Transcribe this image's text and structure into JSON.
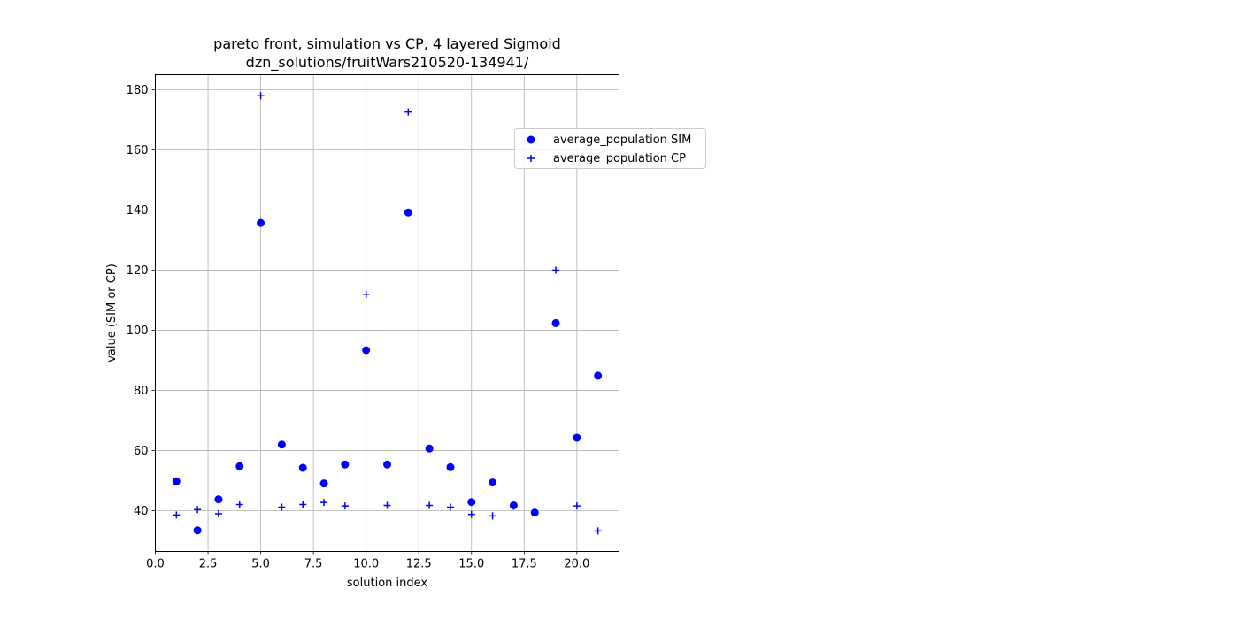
{
  "chart_data": {
    "type": "scatter",
    "title": [
      "pareto front, simulation vs CP, 4 layered Sigmoid",
      "dzn_solutions/fruitWars210520-134941/"
    ],
    "xlabel": "solution index",
    "ylabel": "value (SIM or CP)",
    "xlim": [
      0,
      22
    ],
    "ylim": [
      26.5,
      185
    ],
    "xticks": [
      0.0,
      2.5,
      5.0,
      7.5,
      10.0,
      12.5,
      15.0,
      17.5,
      20.0
    ],
    "xtick_labels": [
      "0.0",
      "2.5",
      "5.0",
      "7.5",
      "10.0",
      "12.5",
      "15.0",
      "17.5",
      "20.0"
    ],
    "yticks": [
      40,
      60,
      80,
      100,
      120,
      140,
      160,
      180
    ],
    "ytick_labels": [
      "40",
      "60",
      "80",
      "100",
      "120",
      "140",
      "160",
      "180"
    ],
    "grid": true,
    "legend_position": "upper-right-outside",
    "series": [
      {
        "name": "average_population SIM",
        "marker": "circle",
        "color": "#0000ff",
        "x": [
          1,
          2,
          3,
          4,
          5,
          6,
          7,
          8,
          9,
          10,
          11,
          12,
          13,
          14,
          15,
          16,
          17,
          18,
          19,
          20,
          21
        ],
        "y": [
          49.8,
          33.5,
          43.8,
          54.8,
          135.7,
          62.0,
          54.3,
          49.1,
          55.4,
          93.4,
          55.4,
          139.2,
          60.7,
          54.5,
          42.9,
          49.4,
          41.8,
          39.4,
          102.4,
          64.3,
          84.9
        ]
      },
      {
        "name": "average_population CP",
        "marker": "plus",
        "color": "#0000ff",
        "x": [
          1,
          2,
          3,
          4,
          5,
          6,
          7,
          8,
          9,
          10,
          11,
          12,
          13,
          14,
          15,
          16,
          17,
          18,
          19,
          20,
          21
        ],
        "y": [
          38.6,
          40.4,
          39.0,
          42.1,
          178.0,
          41.2,
          42.1,
          42.8,
          41.6,
          112.0,
          41.8,
          172.6,
          41.8,
          41.2,
          38.8,
          38.3,
          41.5,
          39.2,
          120.0,
          41.6,
          33.3
        ]
      }
    ]
  }
}
